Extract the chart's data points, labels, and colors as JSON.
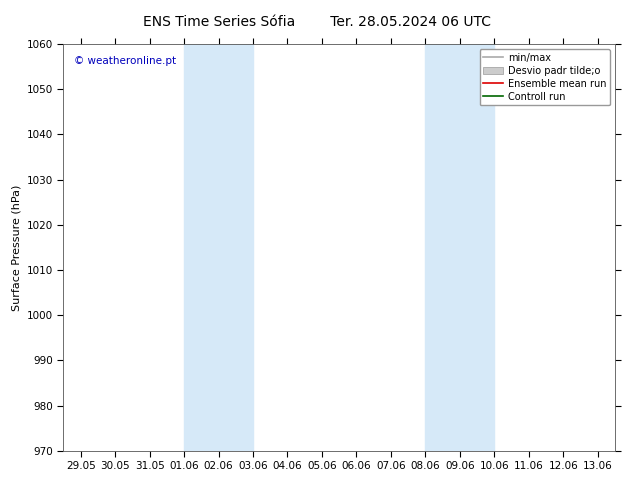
{
  "title_left": "ENS Time Series Sófia",
  "title_right": "Ter. 28.05.2024 06 UTC",
  "ylabel": "Surface Pressure (hPa)",
  "ylim": [
    970,
    1060
  ],
  "yticks": [
    970,
    980,
    990,
    1000,
    1010,
    1020,
    1030,
    1040,
    1050,
    1060
  ],
  "x_labels": [
    "29.05",
    "30.05",
    "31.05",
    "01.06",
    "02.06",
    "03.06",
    "04.06",
    "05.06",
    "06.06",
    "07.06",
    "08.06",
    "09.06",
    "10.06",
    "11.06",
    "12.06",
    "13.06"
  ],
  "x_values": [
    0,
    1,
    2,
    3,
    4,
    5,
    6,
    7,
    8,
    9,
    10,
    11,
    12,
    13,
    14,
    15
  ],
  "xlim": [
    -0.5,
    15.5
  ],
  "shaded_bands": [
    {
      "x_start": 3,
      "x_end": 5
    },
    {
      "x_start": 10,
      "x_end": 12
    }
  ],
  "shade_color": "#d6e9f8",
  "background_color": "#ffffff",
  "copyright_text": "© weatheronline.pt",
  "copyright_color": "#0000bb",
  "legend_entries": [
    {
      "label": "min/max",
      "color": "#aaaaaa",
      "type": "line"
    },
    {
      "label": "Desvio padr tilde;o",
      "color": "#cccccc",
      "type": "patch"
    },
    {
      "label": "Ensemble mean run",
      "color": "#dd0000",
      "type": "line"
    },
    {
      "label": "Controll run",
      "color": "#006600",
      "type": "line"
    }
  ],
  "title_fontsize": 10,
  "ylabel_fontsize": 8,
  "tick_fontsize": 7.5,
  "legend_fontsize": 7,
  "copyright_fontsize": 7.5
}
